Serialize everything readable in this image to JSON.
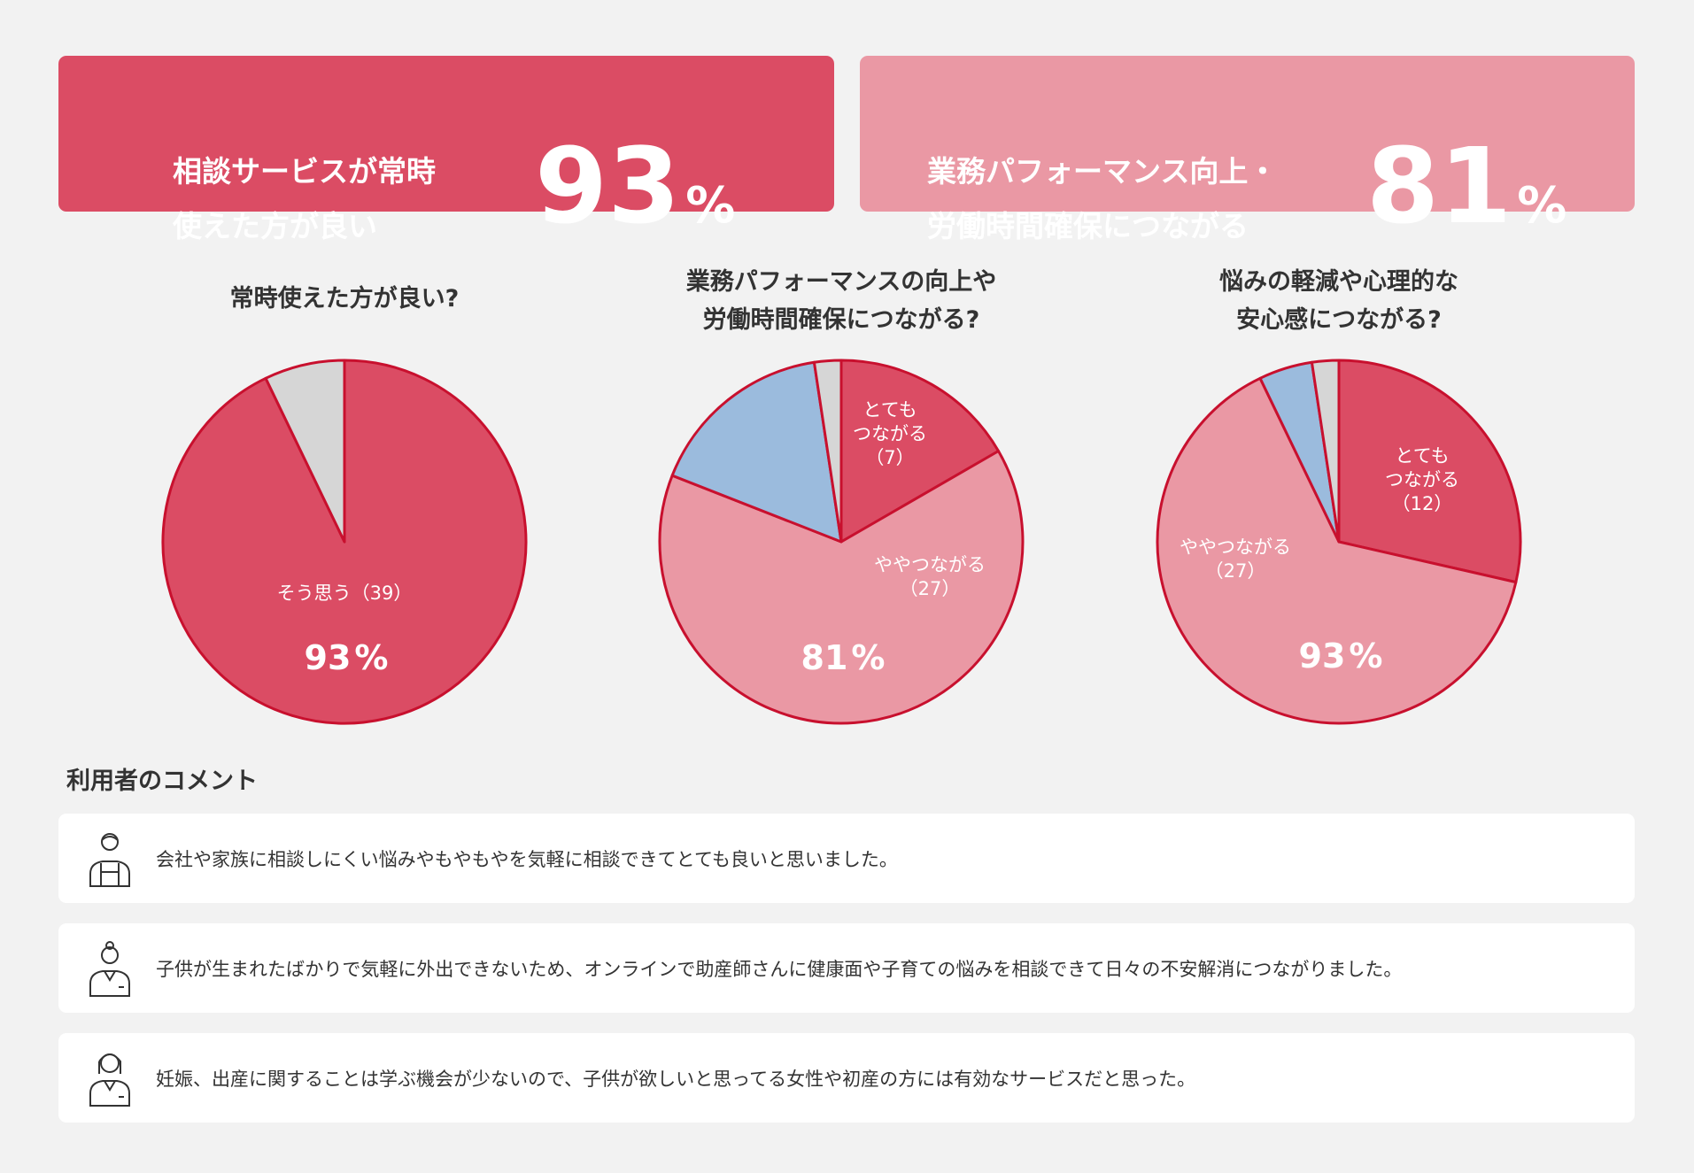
{
  "header": {
    "cards": [
      {
        "label": "相談サービスが常時\n使えた方が良い",
        "value": 93,
        "unit": "%"
      },
      {
        "label": "業務パフォーマンス向上・\n労働時間確保につながる",
        "value": 81,
        "unit": "%"
      }
    ]
  },
  "chart_data": [
    {
      "type": "pie",
      "title": "常時使えた方が良い?",
      "categories": [
        "そう思う",
        null
      ],
      "values": [
        39,
        3
      ],
      "value_labels": [
        "（39）",
        null
      ],
      "colors": [
        "#db4c64",
        "#d6d6d6"
      ],
      "center_value": 93,
      "center_unit": "%"
    },
    {
      "type": "pie",
      "title": "業務パフォーマンスの向上や\n労働時間確保につながる?",
      "categories": [
        "とても\nつながる",
        "ややつながる",
        null,
        null
      ],
      "values": [
        7,
        27,
        7,
        1
      ],
      "value_labels": [
        "（7）",
        "（27）",
        null,
        null
      ],
      "colors": [
        "#db4c64",
        "#ea98a4",
        "#9bbbdd",
        "#d6d6d6"
      ],
      "center_value": 81,
      "center_unit": "%"
    },
    {
      "type": "pie",
      "title": "悩みの軽減や心理的な\n安心感につながる?",
      "categories": [
        "とても\nつながる",
        "ややつながる",
        null,
        null
      ],
      "values": [
        12,
        27,
        2,
        1
      ],
      "value_labels": [
        "（12）",
        "（27）",
        null,
        null
      ],
      "colors": [
        "#db4c64",
        "#ea98a4",
        "#9bbbdd",
        "#d6d6d6"
      ],
      "center_value": 93,
      "center_unit": "%"
    }
  ],
  "comments": {
    "title": "利用者のコメント",
    "items": [
      "会社や家族に相談しにくい悩みやもやもやを気軽に相談できてとても良いと思いました。",
      "子供が生まれたばかりで気軽に外出できないため、オンラインで助産師さんに健康面や子育ての悩みを相談できて日々の不安解消につながりました。",
      "妊娠、出産に関することは学ぶ機会が少ないので、子供が欲しいと思ってる女性や初産の方には有効なサービスだと思った。"
    ]
  }
}
